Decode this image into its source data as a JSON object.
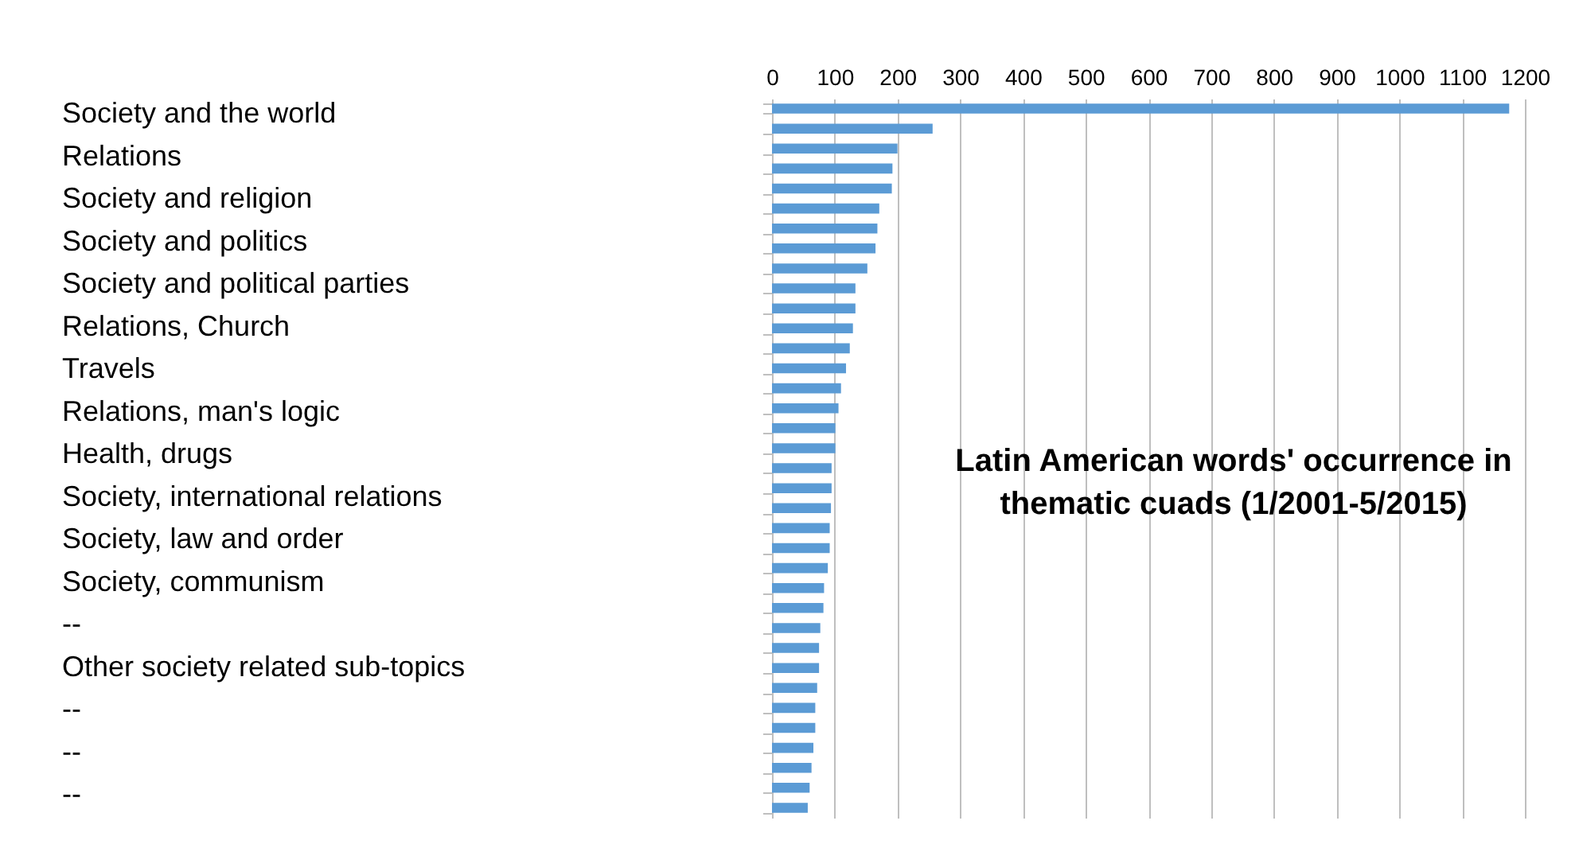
{
  "chart_data": {
    "type": "bar",
    "orientation": "horizontal",
    "title": "Latin American words' occurrence  in thematic cuads (1/2001-5/2015)",
    "categories": [
      null,
      null,
      null,
      null,
      null,
      null,
      null,
      null,
      null,
      null,
      null,
      null,
      null,
      null,
      null,
      null,
      null,
      null,
      null,
      null,
      null,
      null,
      null,
      null,
      null,
      null,
      null,
      null,
      null,
      null,
      null,
      null,
      null,
      null,
      null,
      null
    ],
    "values": [
      1175,
      256,
      200,
      192,
      191,
      171,
      168,
      165,
      152,
      133,
      133,
      129,
      124,
      118,
      110,
      106,
      101,
      101,
      95,
      95,
      94,
      92,
      92,
      89,
      83,
      82,
      77,
      75,
      75,
      72,
      69,
      69,
      66,
      63,
      60,
      57
    ],
    "color": "#5b9bd5",
    "xlim": [
      0,
      1200
    ],
    "xticks": [
      0,
      100,
      200,
      300,
      400,
      500,
      600,
      700,
      800,
      900,
      1000,
      1100,
      1200
    ],
    "grid": "x",
    "tick_labels": "x",
    "annotations": [
      "Society and the world",
      "Relations",
      "Society and religion",
      "Society and politics",
      "Society and political parties",
      "Relations, Church",
      "Travels",
      "Relations, man's logic",
      "Health, drugs",
      "Society, international relations",
      "Society, law and order",
      "Society, communism",
      "--",
      "Other society related sub-topics",
      "--",
      "--",
      "--"
    ]
  }
}
